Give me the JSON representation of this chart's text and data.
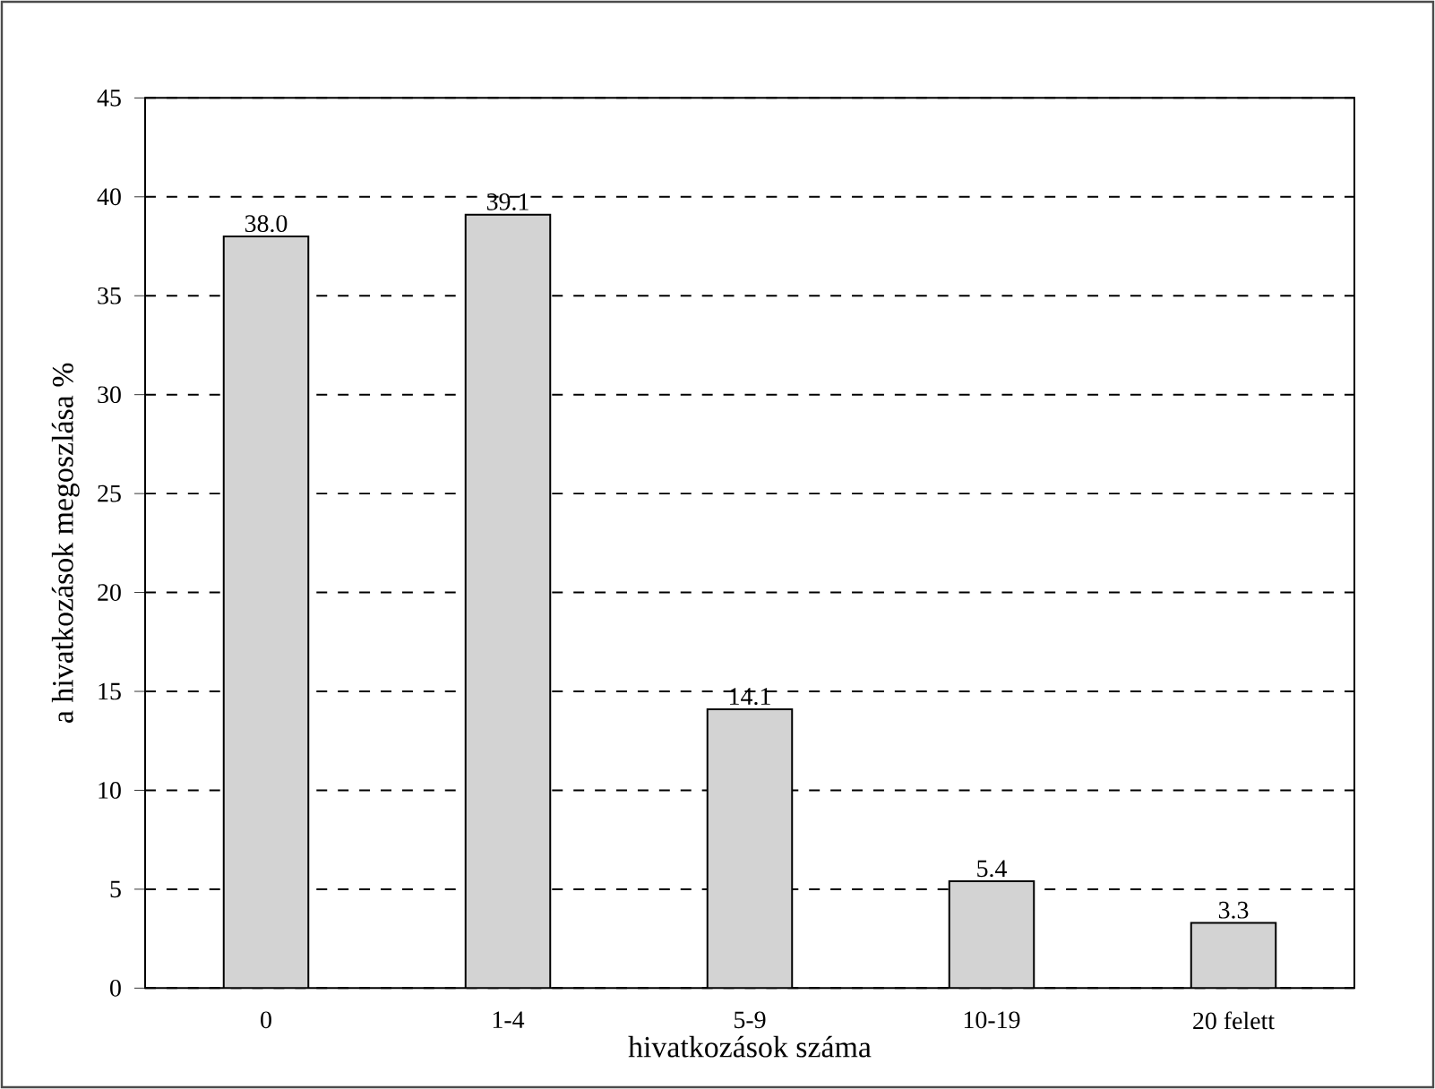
{
  "chart_data": {
    "type": "bar",
    "xlabel": "hivatkozások száma",
    "ylabel": "a hivatkozások megoszlása %",
    "categories": [
      "0",
      "1-4",
      "5-9",
      "10-19",
      "20 felett"
    ],
    "values": [
      38.0,
      39.1,
      14.1,
      5.4,
      3.3
    ],
    "value_labels": [
      "38.0",
      "39.1",
      "14.1",
      "5.4",
      "3.3"
    ],
    "color": "#d3d3d3",
    "ylim": [
      0,
      45
    ],
    "yticks": [
      0,
      5,
      10,
      15,
      20,
      25,
      30,
      35,
      40,
      45
    ],
    "grid": "y"
  }
}
